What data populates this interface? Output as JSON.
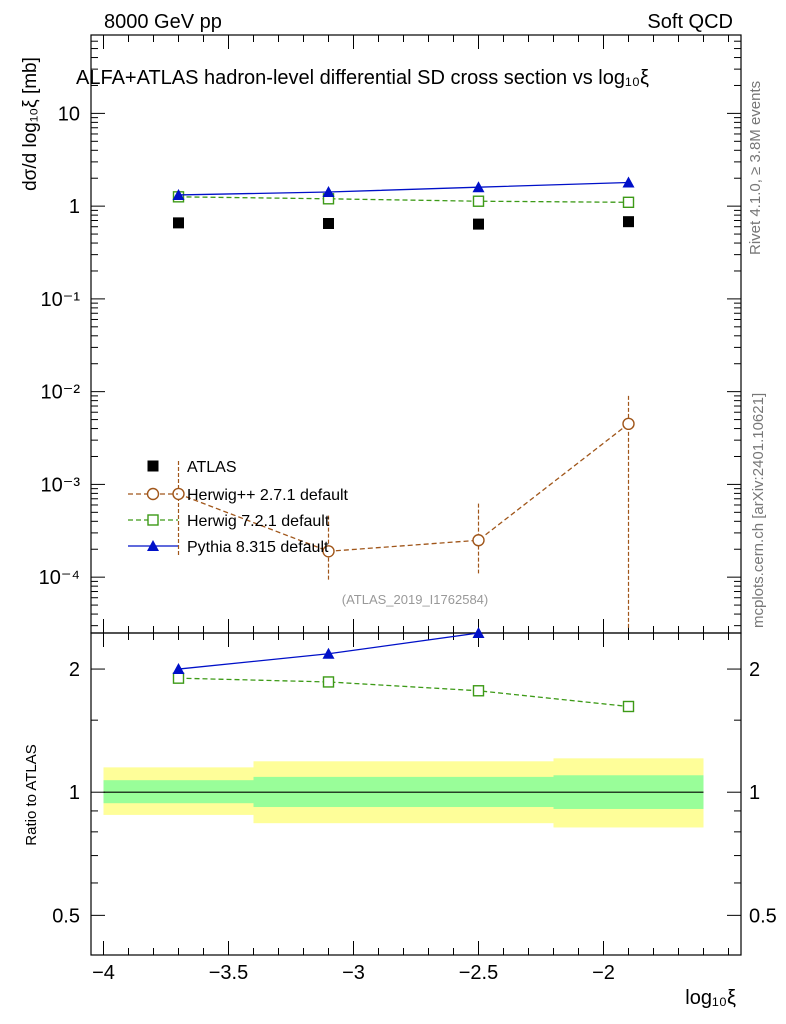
{
  "header": {
    "left": "8000 GeV pp",
    "right": "Soft QCD"
  },
  "side_text": {
    "rivet": "Rivet 4.1.0, ≥ 3.8M events",
    "mcplots": "mcplots.cern.ch [arXiv:2401.10621]"
  },
  "watermark": "(ATLAS_2019_I1762584)",
  "ratio_ylabel": "Ratio to ATLAS",
  "chart_data": [
    {
      "type": "scatter",
      "title": "ALFA+ATLAS hadron-level differential SD cross section vs log₁₀ξ",
      "xlabel": "log₁₀ξ",
      "ylabel": "dσ/d log₁₀ξ [mb]",
      "yscale": "log",
      "xlim": [
        -4.05,
        -1.45
      ],
      "ylim": [
        2.5e-05,
        70
      ],
      "x_ticks": [
        "−4",
        "−3.5",
        "−3",
        "−2.5",
        "−2"
      ],
      "y_ticks": [
        "10",
        "1",
        "10⁻¹",
        "10⁻²",
        "10⁻³",
        "10⁻⁴"
      ],
      "legend": [
        "ATLAS",
        "Herwig++ 2.7.1 default",
        "Herwig 7.2.1 default",
        "Pythia 8.315 default"
      ],
      "series": [
        {
          "name": "ATLAS",
          "color": "#000000",
          "marker": "square-filled",
          "x": [
            -3.7,
            -3.1,
            -2.5,
            -1.9
          ],
          "y": [
            0.66,
            0.65,
            0.64,
            0.68
          ]
        },
        {
          "name": "Herwig++ 2.7.1 default",
          "color": "#a0561a",
          "marker": "circle-open",
          "line": "dashed",
          "x": [
            -3.7,
            -3.1,
            -2.5,
            -1.9
          ],
          "y": [
            0.00079,
            0.00019,
            0.00025,
            0.0045
          ],
          "yerr_low": [
            0.00062,
            0.0001,
            0.00014,
            0.0045
          ],
          "yerr_high": [
            0.001,
            0.00027,
            0.00037,
            0.0045
          ]
        },
        {
          "name": "Herwig 7.2.1 default",
          "color": "#3d9a17",
          "marker": "square-open",
          "line": "dashed",
          "x": [
            -3.7,
            -3.1,
            -2.5,
            -1.9
          ],
          "y": [
            1.26,
            1.2,
            1.13,
            1.1
          ]
        },
        {
          "name": "Pythia 8.315 default",
          "color": "#0010c8",
          "marker": "triangle-filled",
          "line": "solid",
          "x": [
            -3.7,
            -3.1,
            -2.5,
            -1.9
          ],
          "y": [
            1.32,
            1.42,
            1.6,
            1.8
          ]
        }
      ]
    },
    {
      "type": "line",
      "title": "",
      "xlabel": "log₁₀ξ",
      "ylabel": "Ratio to ATLAS",
      "yscale": "log",
      "xlim": [
        -4.05,
        -1.45
      ],
      "ylim": [
        0.4,
        2.45
      ],
      "y_ticks": [
        "0.5",
        "1",
        "2"
      ],
      "bands": [
        {
          "x0": -4.0,
          "x1": -3.4,
          "inner": [
            0.94,
            1.07
          ],
          "outer": [
            0.88,
            1.15
          ]
        },
        {
          "x0": -3.4,
          "x1": -2.2,
          "inner": [
            0.92,
            1.09
          ],
          "outer": [
            0.84,
            1.19
          ]
        },
        {
          "x0": -2.2,
          "x1": -1.6,
          "inner": [
            0.91,
            1.1
          ],
          "outer": [
            0.82,
            1.21
          ]
        }
      ],
      "series": [
        {
          "name": "Herwig 7.2.1 default",
          "color": "#3d9a17",
          "marker": "square-open",
          "line": "dashed",
          "x": [
            -3.7,
            -3.1,
            -2.5,
            -1.9
          ],
          "y": [
            1.9,
            1.86,
            1.77,
            1.62
          ]
        },
        {
          "name": "Pythia 8.315 default",
          "color": "#0010c8",
          "marker": "triangle-filled",
          "line": "solid",
          "x": [
            -3.7,
            -3.1,
            -2.5
          ],
          "y": [
            2.0,
            2.18,
            2.45
          ]
        }
      ]
    }
  ]
}
